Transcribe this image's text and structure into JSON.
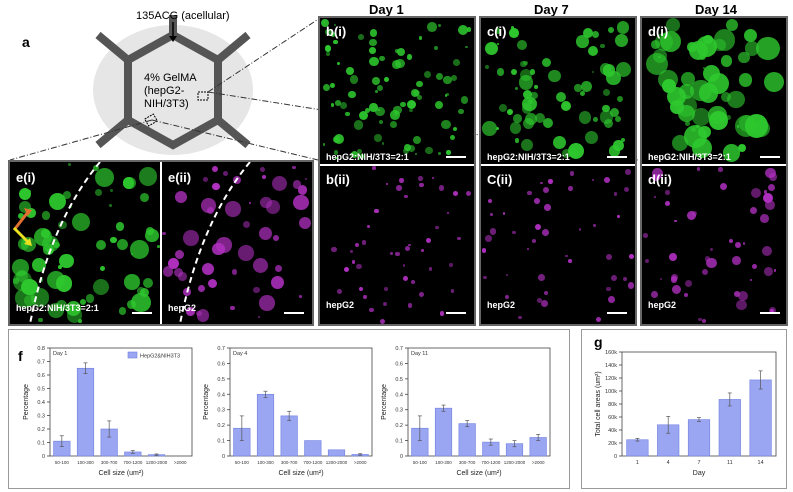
{
  "figure": {
    "label_a": "a",
    "label_f": "f",
    "label_g": "g",
    "schematic": {
      "top_label": "135ACG (acellular)",
      "center_label_lines": [
        "4% GelMA",
        "(hepG2-",
        "NIH/3T3)"
      ]
    },
    "days": [
      "Day 1",
      "Day 7",
      "Day 14"
    ],
    "panels": {
      "bi": {
        "label": "b(i)",
        "caption": "hepG2:NIH/3T3=2:1"
      },
      "ci": {
        "label": "c(i)",
        "caption": "hepG2:NIH/3T3=2:1"
      },
      "di": {
        "label": "d(i)",
        "caption": "hepG2:NIH/3T3=2:1"
      },
      "bii": {
        "label": "b(ii)",
        "caption": "hepG2"
      },
      "cii": {
        "label": "C(ii)",
        "caption": "hepG2"
      },
      "dii": {
        "label": "d(ii)",
        "caption": "hepG2"
      },
      "ei": {
        "label": "e(i)",
        "caption": "hepG2:NIH/3T3=2:1"
      },
      "eii": {
        "label": "e(ii)",
        "caption": "hepG2"
      }
    },
    "colors": {
      "green": "#2ec82e",
      "magenta": "#b030c0",
      "bar": "#9aa6f2",
      "frame": "#666666"
    }
  },
  "chart_data": [
    {
      "type": "bar",
      "title": "Day 1",
      "legend": "HepG2&NIH3T3",
      "categories": [
        "50-100",
        "100-300",
        "300-700",
        "700-1200",
        "1200-2000",
        ">2000"
      ],
      "values": [
        0.11,
        0.65,
        0.2,
        0.03,
        0.01,
        0.0
      ],
      "errors": [
        0.04,
        0.04,
        0.06,
        0.01,
        0.005,
        0.0
      ],
      "xlabel": "Cell size (um²)",
      "ylabel": "Percentage",
      "ylim": [
        0,
        0.8
      ],
      "yticks": [
        "0",
        "0.1",
        "0.2",
        "0.3",
        "0.4",
        "0.5",
        "0.6",
        "0.7",
        "0.8"
      ]
    },
    {
      "type": "bar",
      "title": "Day 4",
      "categories": [
        "50-100",
        "100-300",
        "300-700",
        "700-1200",
        "1200-2000",
        ">2000"
      ],
      "values": [
        0.18,
        0.4,
        0.26,
        0.1,
        0.04,
        0.01
      ],
      "errors": [
        0.08,
        0.02,
        0.03,
        0.0,
        0.0,
        0.005
      ],
      "xlabel": "Cell size (um²)",
      "ylabel": "Percentage",
      "ylim": [
        0,
        0.7
      ],
      "yticks": [
        "0",
        "0.1",
        "0.2",
        "0.3",
        "0.4",
        "0.5",
        "0.6",
        "0.7"
      ]
    },
    {
      "type": "bar",
      "title": "Day 11",
      "categories": [
        "50-100",
        "100-300",
        "300-700",
        "700-1200",
        "1200-2000",
        ">2000"
      ],
      "values": [
        0.18,
        0.31,
        0.21,
        0.09,
        0.08,
        0.12
      ],
      "errors": [
        0.08,
        0.02,
        0.02,
        0.02,
        0.02,
        0.02
      ],
      "xlabel": "Cell size (um²)",
      "ylabel": "Percentage",
      "ylim": [
        0,
        0.7
      ],
      "yticks": [
        "0",
        "0.1",
        "0.2",
        "0.3",
        "0.4",
        "0.5",
        "0.6",
        "0.7"
      ]
    },
    {
      "type": "bar",
      "title": "",
      "categories": [
        "1",
        "4",
        "7",
        "11",
        "14"
      ],
      "values": [
        25000,
        48000,
        56000,
        87000,
        117000
      ],
      "errors": [
        2000,
        13000,
        3000,
        10000,
        14000
      ],
      "xlabel": "Day",
      "ylabel": "Total cell areas (um²)",
      "ylim": [
        0,
        160000
      ],
      "yticks": [
        "0",
        "20k",
        "40k",
        "60k",
        "80k",
        "100k",
        "120k",
        "140k",
        "160k"
      ]
    }
  ]
}
